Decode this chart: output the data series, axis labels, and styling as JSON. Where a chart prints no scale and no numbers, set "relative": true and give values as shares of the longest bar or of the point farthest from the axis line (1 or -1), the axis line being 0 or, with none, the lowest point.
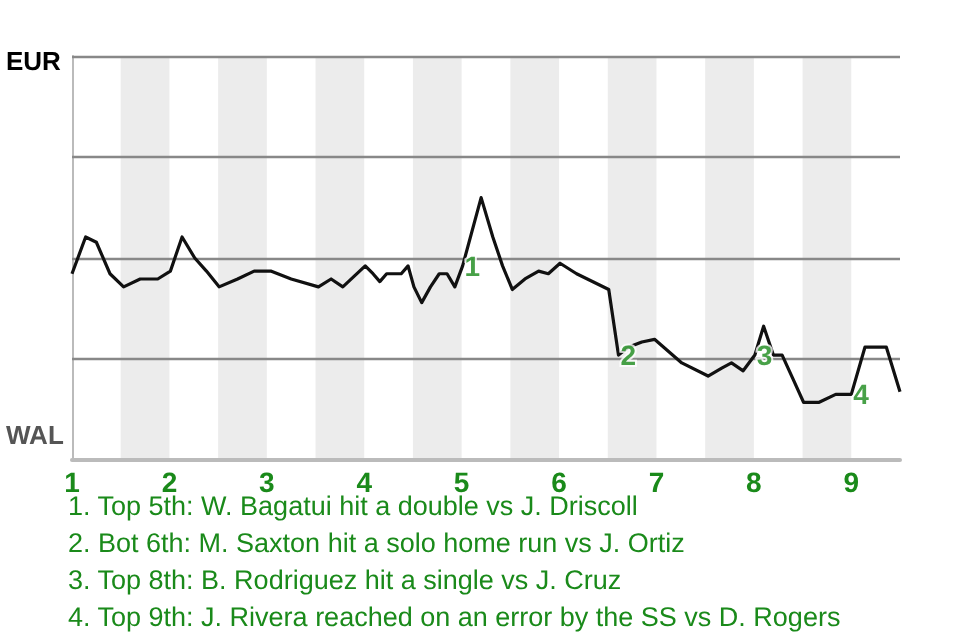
{
  "chart_data": {
    "type": "line",
    "relative": true,
    "x": [
      1,
      1.14,
      1.25,
      1.39,
      1.53,
      1.7,
      1.88,
      2.01,
      2.13,
      2.26,
      2.38,
      2.51,
      2.7,
      2.87,
      3.04,
      3.25,
      3.53,
      3.66,
      3.78,
      4.01,
      4.09,
      4.16,
      4.23,
      4.38,
      4.45,
      4.51,
      4.59,
      4.68,
      4.77,
      4.85,
      4.93,
      5.01,
      5.2,
      5.32,
      5.42,
      5.52,
      5.65,
      5.79,
      5.89,
      6.01,
      6.18,
      6.51,
      6.61,
      6.71,
      6.85,
      6.98,
      7.26,
      7.53,
      7.67,
      7.77,
      7.89,
      8.01,
      8.1,
      8.2,
      8.29,
      8.4,
      8.51,
      8.67,
      8.84,
      9,
      9.14,
      9.36,
      9.5
    ],
    "series": [
      {
        "color": "#111111",
        "values": [
          0.71,
          0.85,
          0.83,
          0.71,
          0.66,
          0.69,
          0.69,
          0.72,
          0.85,
          0.77,
          0.72,
          0.66,
          0.69,
          0.72,
          0.72,
          0.69,
          0.66,
          0.69,
          0.66,
          0.74,
          0.71,
          0.68,
          0.71,
          0.71,
          0.74,
          0.66,
          0.6,
          0.66,
          0.71,
          0.71,
          0.66,
          0.74,
          1,
          0.85,
          0.74,
          0.65,
          0.69,
          0.72,
          0.71,
          0.75,
          0.71,
          0.65,
          0.4,
          0.43,
          0.45,
          0.46,
          0.37,
          0.32,
          0.35,
          0.37,
          0.34,
          0.4,
          0.51,
          0.4,
          0.4,
          0.31,
          0.22,
          0.22,
          0.25,
          0.25,
          0.43,
          0.43,
          0.26
        ]
      }
    ],
    "xlim": [
      1,
      9.5
    ],
    "xticks": [
      1,
      2,
      3,
      4,
      5,
      6,
      7,
      8,
      9
    ],
    "ref_lines": [
      {
        "axis": "y",
        "value": 0.385,
        "color": "#888888"
      },
      {
        "axis": "y",
        "value": 0.77,
        "color": "#888888"
      },
      {
        "axis": "y",
        "value": 1.155,
        "color": "#888888"
      },
      {
        "axis": "y",
        "value": 1.54,
        "color": "#888888"
      }
    ],
    "marker": "none",
    "line_style": "solid",
    "bands": [
      {
        "axis": "x",
        "from": 1.5,
        "to": 2,
        "color": "#ececec"
      },
      {
        "axis": "x",
        "from": 2.5,
        "to": 3,
        "color": "#ececec"
      },
      {
        "axis": "x",
        "from": 3.5,
        "to": 4,
        "color": "#ececec"
      },
      {
        "axis": "x",
        "from": 4.5,
        "to": 5,
        "color": "#ececec"
      },
      {
        "axis": "x",
        "from": 5.5,
        "to": 6,
        "color": "#ececec"
      },
      {
        "axis": "x",
        "from": 6.5,
        "to": 7,
        "color": "#ececec"
      },
      {
        "axis": "x",
        "from": 7.5,
        "to": 8,
        "color": "#ececec"
      },
      {
        "axis": "x",
        "from": 8.5,
        "to": 9,
        "color": "#ececec"
      }
    ],
    "annotations": [
      "EUR",
      "WAL",
      {
        "text": "1",
        "x": 5.01,
        "y": 0.74
      },
      {
        "text": "2",
        "x": 6.61,
        "y": 0.4
      },
      {
        "text": "3",
        "x": 8.01,
        "y": 0.4
      },
      {
        "text": "4",
        "x": 9,
        "y": 0.25
      },
      "1. Top 5th: W. Bagatui hit a double vs J. Driscoll",
      "2. Bot 6th: M. Saxton hit a solo home run vs J. Ortiz",
      "3. Top 8th: B. Rodriguez hit a single vs J. Cruz",
      "4. Top 9th: J. Rivera reached on an error by the SS vs D. Rogers"
    ]
  }
}
